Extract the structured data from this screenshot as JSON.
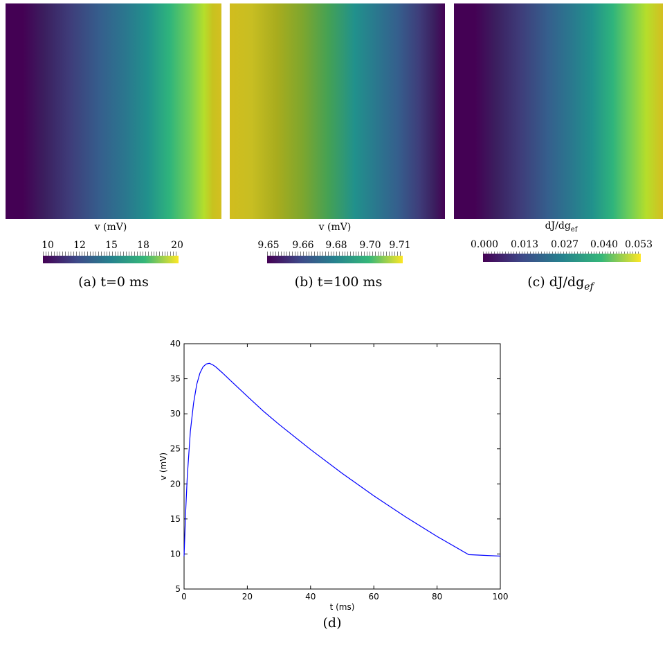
{
  "panels": [
    {
      "id": "a",
      "colorbar_title": "v (mV)",
      "ticks": [
        "10",
        "12",
        "15",
        "18",
        "20"
      ],
      "caption": "(a) t=0 ms",
      "field_direction": "low-left-to-high-right"
    },
    {
      "id": "b",
      "colorbar_title": "v (mV)",
      "ticks": [
        "9.65",
        "9.66",
        "9.68",
        "9.70",
        "9.71"
      ],
      "caption": "(b) t=100 ms",
      "field_direction": "high-left-to-low-right"
    },
    {
      "id": "c",
      "colorbar_title": "dJ/dg",
      "colorbar_title_sub": "ef",
      "ticks": [
        "0.000",
        "0.013",
        "0.027",
        "0.040",
        "0.053"
      ],
      "caption": "(c) dJ/dg",
      "caption_sub": "ef",
      "field_direction": "low-left-to-high-right"
    }
  ],
  "colormap": "viridis",
  "colors": {
    "line": "#0000ff",
    "axis": "#000000"
  },
  "chart_caption": "(d)",
  "chart_data": {
    "type": "line",
    "xlabel": "t (ms)",
    "ylabel": "v (mV)",
    "xlim": [
      0,
      100
    ],
    "ylim": [
      5,
      40
    ],
    "xticks": [
      0,
      20,
      40,
      60,
      80,
      100
    ],
    "yticks": [
      5,
      10,
      15,
      20,
      25,
      30,
      35,
      40
    ],
    "grid": false,
    "series": [
      {
        "x": [
          0,
          0.5,
          1,
          2,
          3,
          4,
          5,
          6,
          7,
          8,
          9,
          10,
          12,
          15,
          20,
          25,
          30,
          40,
          50,
          60,
          70,
          80,
          90,
          100
        ],
        "y": [
          9.7,
          16.0,
          21.0,
          27.5,
          31.5,
          34.2,
          35.8,
          36.7,
          37.1,
          37.2,
          37.0,
          36.7,
          35.9,
          34.6,
          32.5,
          30.4,
          28.5,
          24.9,
          21.5,
          18.3,
          15.3,
          12.5,
          9.9,
          9.7
        ]
      }
    ]
  }
}
